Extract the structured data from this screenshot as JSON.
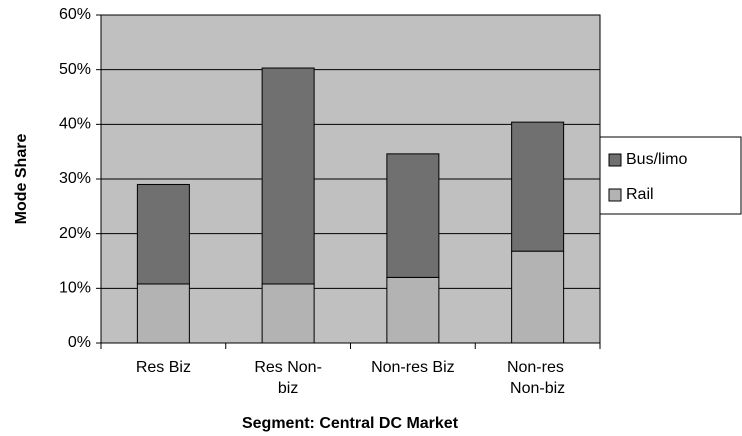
{
  "chart_data": {
    "type": "stacked_bar",
    "x_label": "Segment: Central DC Market",
    "y_label": "Mode Share",
    "categories": [
      "Res Biz",
      "Res Non-biz",
      "Non-res Biz",
      "Non-res Non-biz"
    ],
    "series": [
      {
        "name": "Rail",
        "color": "#b3b3b3",
        "values": [
          10.8,
          10.8,
          12,
          16.8
        ]
      },
      {
        "name": "Bus/limo",
        "color": "#707070",
        "values": [
          18.2,
          39.5,
          22.6,
          23.6
        ]
      }
    ],
    "ylim": [
      0,
      60
    ],
    "yticks": [
      {
        "value": 0,
        "label": "0%"
      },
      {
        "value": 10,
        "label": "10%"
      },
      {
        "value": 20,
        "label": "20%"
      },
      {
        "value": 30,
        "label": "30%"
      },
      {
        "value": 40,
        "label": "40%"
      },
      {
        "value": 50,
        "label": "50%"
      },
      {
        "value": 60,
        "label": "60%"
      }
    ],
    "grid": true,
    "legend": "right"
  }
}
